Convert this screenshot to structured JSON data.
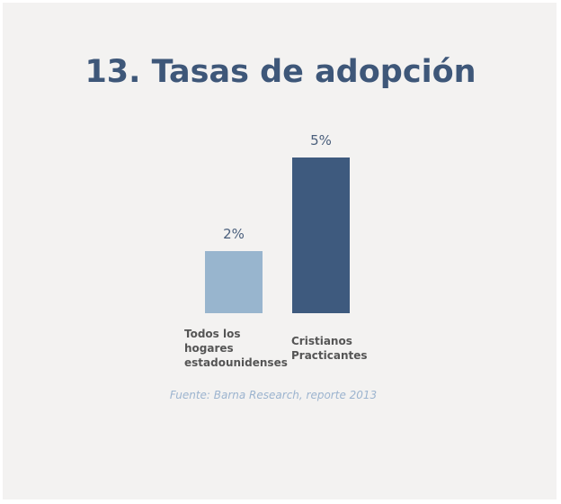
{
  "slide": {
    "title": "13. Tasas de adopción",
    "source": "Fuente: Barna Research, reporte 2013"
  },
  "chart_data": {
    "type": "bar",
    "title": "13. Tasas de adopción",
    "categories": [
      "Todos los\nhogares\nestadounidenses",
      "Cristianos\nPracticantes"
    ],
    "values": [
      2,
      5
    ],
    "value_labels": [
      "2%",
      "5%"
    ],
    "colors": [
      "#98b5ce",
      "#3e5a7e"
    ],
    "ylim": [
      0,
      5
    ],
    "grid": false,
    "legend": "none"
  }
}
